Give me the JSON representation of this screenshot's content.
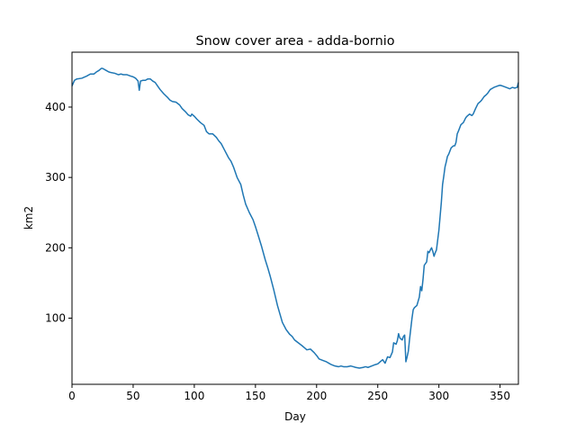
{
  "chart_data": {
    "type": "line",
    "title": "Snow cover area - adda-bornio",
    "xlabel": "Day",
    "ylabel": "km2",
    "xlim": [
      0,
      365
    ],
    "ylim": [
      6,
      478
    ],
    "xticks": [
      0,
      50,
      100,
      150,
      200,
      250,
      300,
      350
    ],
    "yticks": [
      100,
      200,
      300,
      400
    ],
    "grid": false,
    "line_color": "#1f77b4",
    "series": [
      {
        "x": [
          0,
          2,
          4,
          8,
          12,
          15,
          18,
          20,
          22,
          24,
          25,
          28,
          30,
          32,
          35,
          38,
          40,
          42,
          45,
          48,
          50,
          52,
          54,
          55,
          56,
          58,
          60,
          62,
          64,
          66,
          68,
          70,
          72,
          75,
          78,
          80,
          82,
          85,
          88,
          90,
          93,
          95,
          97,
          98,
          100,
          102,
          105,
          108,
          110,
          112,
          115,
          118,
          120,
          122,
          125,
          128,
          130,
          132,
          135,
          138,
          140,
          142,
          145,
          148,
          150,
          152,
          155,
          158,
          160,
          162,
          165,
          168,
          170,
          172,
          175,
          178,
          180,
          182,
          185,
          188,
          190,
          192,
          195,
          198,
          200,
          202,
          205,
          208,
          210,
          212,
          215,
          218,
          220,
          222,
          225,
          228,
          230,
          232,
          235,
          238,
          240,
          242,
          245,
          248,
          250,
          252,
          254,
          256,
          258,
          260,
          262,
          263,
          265,
          266,
          267,
          268,
          270,
          271,
          272,
          273,
          274,
          275,
          276,
          278,
          279,
          280,
          282,
          284,
          285,
          286,
          287,
          288,
          290,
          291,
          292,
          293,
          294,
          295,
          296,
          297,
          298,
          300,
          301,
          302,
          303,
          304,
          305,
          306,
          307,
          308,
          310,
          312,
          313,
          314,
          315,
          316,
          318,
          320,
          322,
          323,
          325,
          327,
          328,
          330,
          332,
          334,
          335,
          337,
          339,
          340,
          342,
          345,
          348,
          350,
          352,
          355,
          358,
          360,
          362,
          364,
          365
        ],
        "y": [
          430,
          438,
          440,
          441,
          444,
          447,
          447,
          450,
          452,
          455,
          455,
          452,
          450,
          449,
          448,
          446,
          447,
          446,
          446,
          444,
          443,
          441,
          437,
          424,
          437,
          438,
          438,
          440,
          440,
          437,
          435,
          430,
          425,
          419,
          414,
          410,
          408,
          407,
          403,
          398,
          393,
          389,
          387,
          390,
          387,
          383,
          378,
          374,
          365,
          362,
          362,
          357,
          352,
          348,
          338,
          328,
          323,
          315,
          300,
          290,
          275,
          262,
          250,
          240,
          230,
          219,
          202,
          183,
          172,
          160,
          140,
          118,
          106,
          94,
          84,
          77,
          74,
          69,
          65,
          61,
          58,
          55,
          56,
          51,
          47,
          42,
          40,
          38,
          36,
          34,
          32,
          31,
          32,
          31,
          31,
          32,
          31,
          30,
          29,
          30,
          31,
          30,
          32,
          34,
          35,
          38,
          41,
          36,
          45,
          44,
          52,
          65,
          63,
          68,
          78,
          72,
          69,
          74,
          76,
          38,
          45,
          53,
          70,
          100,
          112,
          115,
          118,
          130,
          145,
          139,
          155,
          175,
          180,
          195,
          193,
          197,
          200,
          195,
          188,
          193,
          197,
          225,
          245,
          265,
          290,
          302,
          315,
          322,
          330,
          333,
          342,
          345,
          345,
          350,
          362,
          366,
          375,
          378,
          385,
          387,
          390,
          388,
          390,
          398,
          405,
          408,
          410,
          415,
          418,
          420,
          425,
          428,
          430,
          431,
          430,
          428,
          426,
          428,
          427,
          428,
          435
        ]
      }
    ]
  }
}
